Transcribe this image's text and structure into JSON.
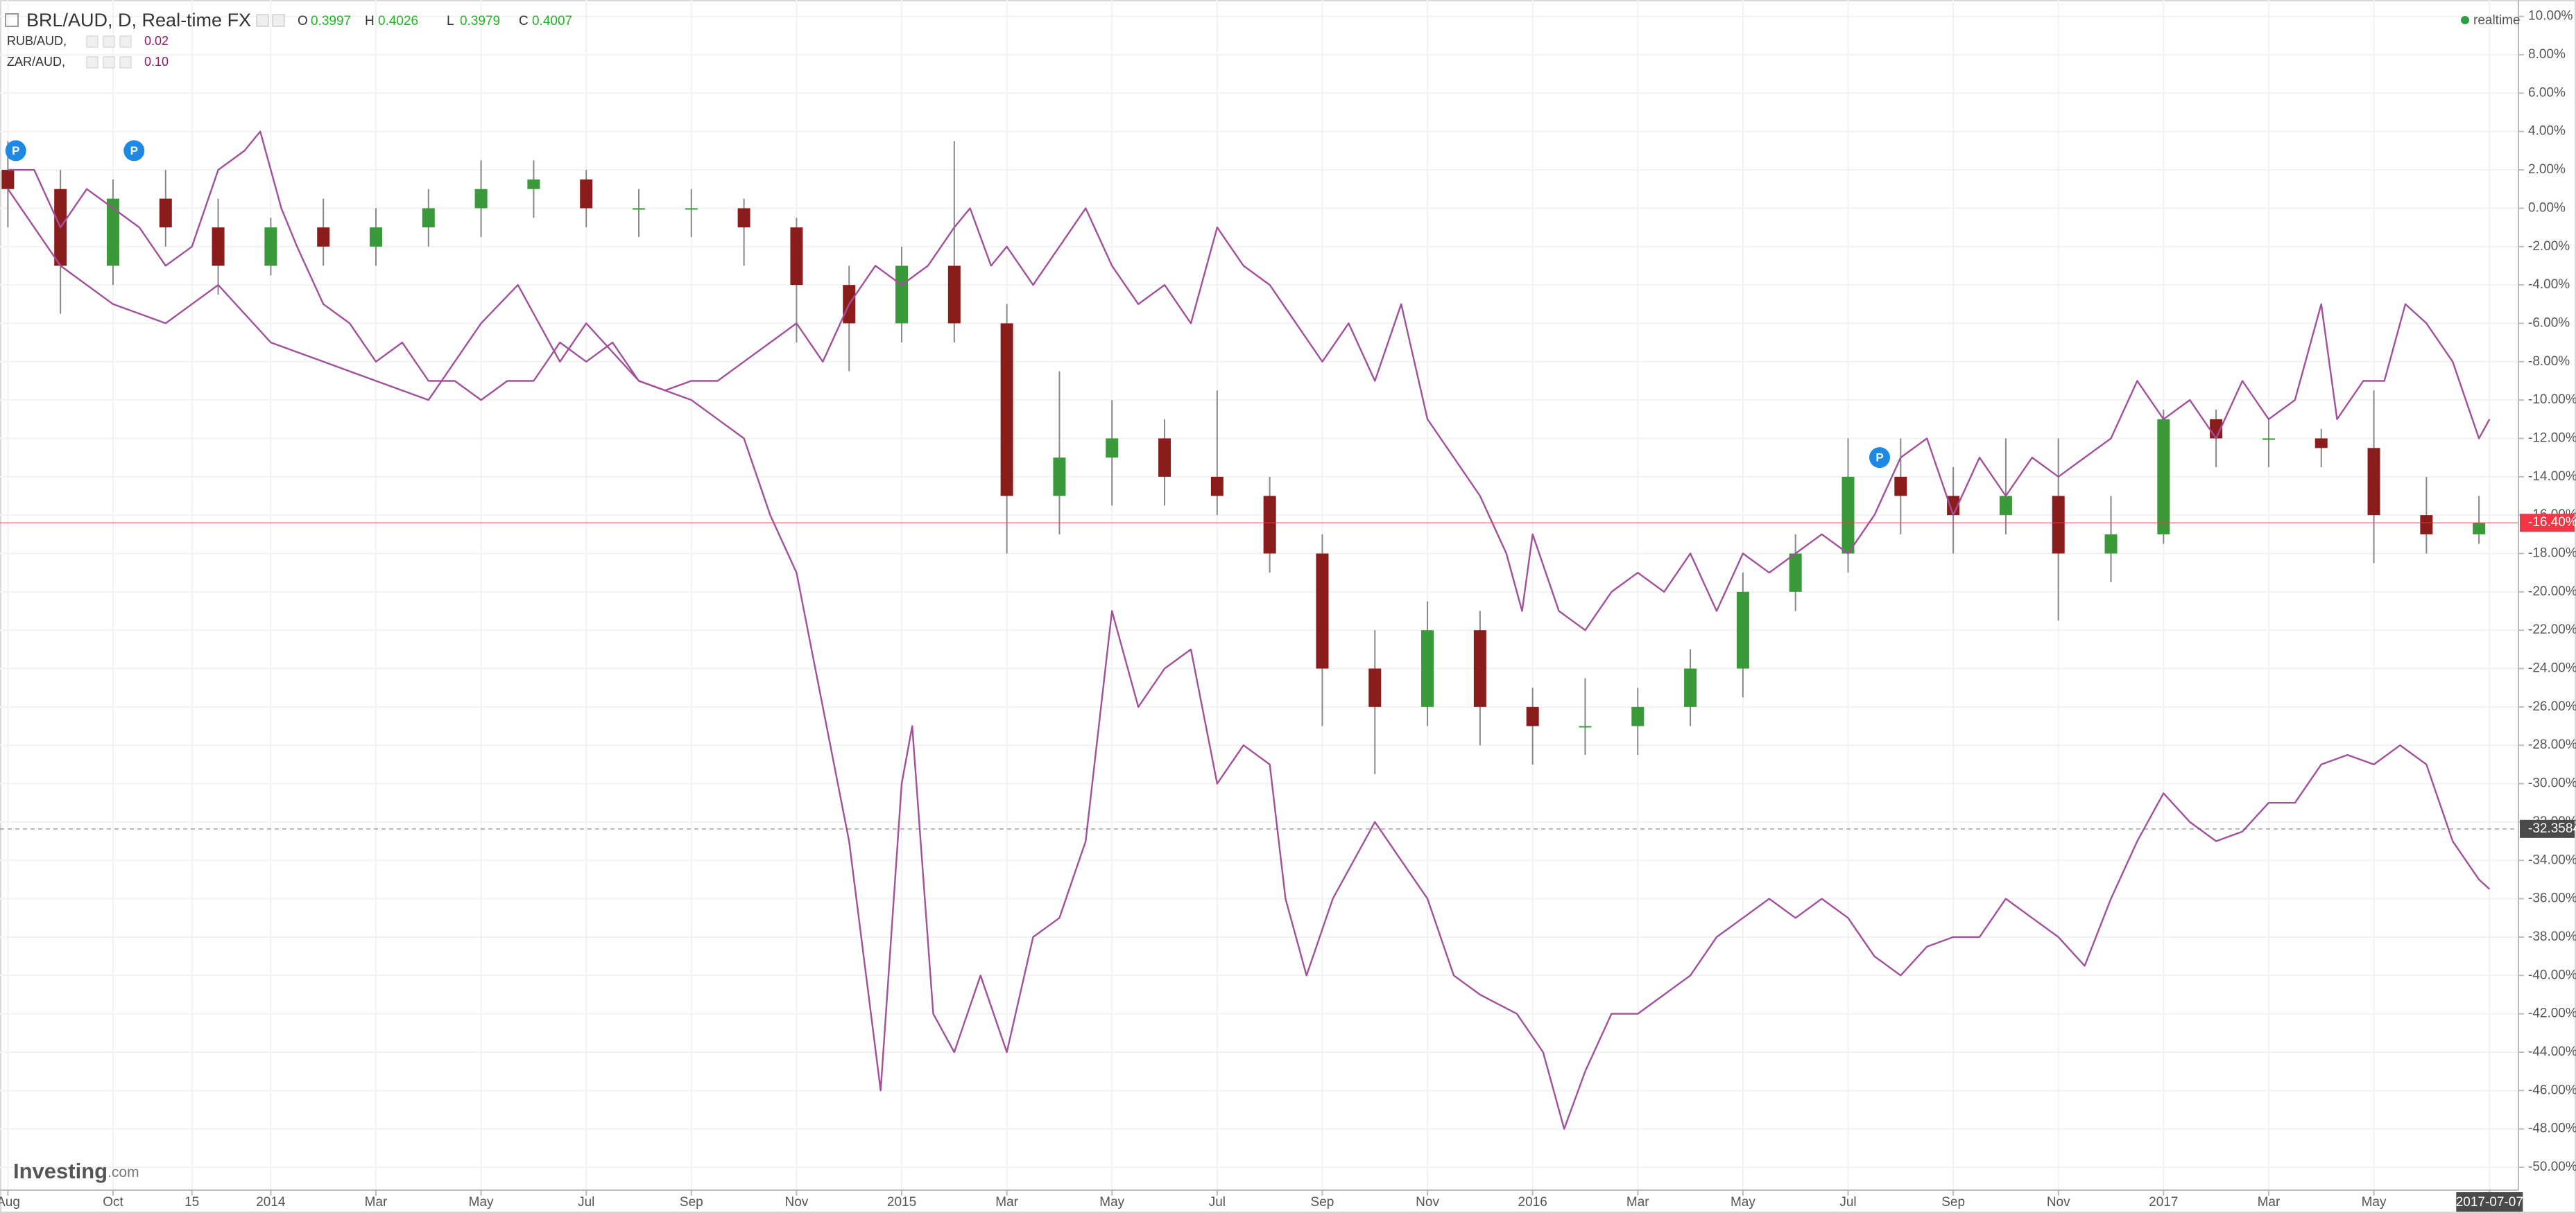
{
  "chart_data": {
    "type": "candlestick",
    "title": "BRL/AUD, D, Real-time FX",
    "ohlc": [
      {
        "label": "O",
        "value": "0.3997"
      },
      {
        "label": "H",
        "value": "0.4026"
      },
      {
        "label": "L",
        "value": "0.3979"
      },
      {
        "label": "C",
        "value": "0.4007"
      }
    ],
    "badge": "realtime",
    "logo": "Investing",
    "logo_suffix": ".com",
    "grid": true,
    "xlim": [
      -0.15,
      47.75
    ],
    "xticks": [
      {
        "value": 0,
        "label": "Aug"
      },
      {
        "value": 2,
        "label": "Oct"
      },
      {
        "value": 3.5,
        "label": "15"
      },
      {
        "value": 5,
        "label": "2014"
      },
      {
        "value": 7,
        "label": "Mar"
      },
      {
        "value": 9,
        "label": "May"
      },
      {
        "value": 11,
        "label": "Jul"
      },
      {
        "value": 13,
        "label": "Sep"
      },
      {
        "value": 15,
        "label": "Nov"
      },
      {
        "value": 17,
        "label": "2015"
      },
      {
        "value": 19,
        "label": "Mar"
      },
      {
        "value": 21,
        "label": "May"
      },
      {
        "value": 23,
        "label": "Jul"
      },
      {
        "value": 25,
        "label": "Sep"
      },
      {
        "value": 27,
        "label": "Nov"
      },
      {
        "value": 29,
        "label": "2016"
      },
      {
        "value": 31,
        "label": "Mar"
      },
      {
        "value": 33,
        "label": "May"
      },
      {
        "value": 35,
        "label": "Jul"
      },
      {
        "value": 37,
        "label": "Sep"
      },
      {
        "value": 39,
        "label": "Nov"
      },
      {
        "value": 41,
        "label": "2017"
      },
      {
        "value": 43,
        "label": "Mar"
      },
      {
        "value": 45,
        "label": "May"
      },
      {
        "value": 47.2,
        "label": "2017-07-07"
      }
    ],
    "ylim": [
      -50,
      10
    ],
    "yticks": [
      {
        "value": 10,
        "label": "10.00%"
      },
      {
        "value": 8,
        "label": "8.00%"
      },
      {
        "value": 6,
        "label": "6.00%"
      },
      {
        "value": 4,
        "label": "4.00%"
      },
      {
        "value": 2,
        "label": "2.00%"
      },
      {
        "value": 0,
        "label": "0.00%"
      },
      {
        "value": -2,
        "label": "-2.00%"
      },
      {
        "value": -4,
        "label": "-4.00%"
      },
      {
        "value": -6,
        "label": "-6.00%"
      },
      {
        "value": -8,
        "label": "-8.00%"
      },
      {
        "value": -10,
        "label": "-10.00%"
      },
      {
        "value": -12,
        "label": "-12.00%"
      },
      {
        "value": -14,
        "label": "-14.00%"
      },
      {
        "value": -16,
        "label": "-16.00%"
      },
      {
        "value": -18,
        "label": "-18.00%"
      },
      {
        "value": -20,
        "label": "-20.00%"
      },
      {
        "value": -22,
        "label": "-22.00%"
      },
      {
        "value": -24,
        "label": "-24.00%"
      },
      {
        "value": -26,
        "label": "-26.00%"
      },
      {
        "value": -28,
        "label": "-28.00%"
      },
      {
        "value": -30,
        "label": "-30.00%"
      },
      {
        "value": -32,
        "label": "-32.00%"
      },
      {
        "value": -34,
        "label": "-34.00%"
      },
      {
        "value": -36,
        "label": "-36.00%"
      },
      {
        "value": -38,
        "label": "-38.00%"
      },
      {
        "value": -40,
        "label": "-40.00%"
      },
      {
        "value": -42,
        "label": "-42.00%"
      },
      {
        "value": -44,
        "label": "-44.00%"
      },
      {
        "value": -46,
        "label": "-46.00%"
      },
      {
        "value": -48,
        "label": "-48.00%"
      },
      {
        "value": -50,
        "label": "-50.00%"
      }
    ],
    "series": [
      {
        "type": "candlestick",
        "up_color": "#3a9a3a",
        "down_color": "#8b1c1c",
        "wick_color": "#888888",
        "x": [
          0,
          1,
          2,
          3,
          4,
          5,
          6,
          7,
          8,
          9,
          10,
          11,
          12,
          13,
          14,
          15,
          16,
          17,
          18,
          19,
          20,
          21,
          22,
          23,
          24,
          25,
          26,
          27,
          28,
          29,
          30,
          31,
          32,
          33,
          34,
          35,
          36,
          37,
          38,
          39,
          40,
          41,
          42,
          43,
          44,
          45,
          46,
          47
        ],
        "open": [
          2,
          1,
          -3,
          0.5,
          -1,
          -3,
          -1,
          -2,
          -1,
          0,
          1,
          1.5,
          0,
          0,
          0,
          -1,
          -4,
          -6,
          -3,
          -6,
          -15,
          -13,
          -12,
          -14,
          -15,
          -18,
          -24,
          -26,
          -22,
          -26,
          -27,
          -27,
          -26,
          -24,
          -20,
          -18,
          -14,
          -15,
          -16,
          -15,
          -18,
          -17,
          -11,
          -12,
          -12,
          -12.5,
          -16,
          -17
        ],
        "high": [
          3.5,
          2,
          1.5,
          2,
          0.5,
          -0.5,
          0.5,
          0,
          1,
          2.5,
          2.5,
          2,
          1,
          1,
          0.5,
          -0.5,
          -3,
          -2,
          3.5,
          -5,
          -8.5,
          -10,
          -11,
          -9.5,
          -14,
          -17,
          -22,
          -20.5,
          -21,
          -25,
          -24.5,
          -25,
          -23,
          -19,
          -17,
          -12,
          -12,
          -13.5,
          -12,
          -12,
          -15,
          -10.5,
          -10.5,
          -11,
          -11.5,
          -9.5,
          -14,
          -15
        ],
        "low": [
          -1,
          -5.5,
          -4,
          -2,
          -4.5,
          -3.5,
          -3,
          -3,
          -2,
          -1.5,
          -0.5,
          -1,
          -1.5,
          -1.5,
          -3,
          -7,
          -8.5,
          -7,
          -7,
          -18,
          -17,
          -15.5,
          -15.5,
          -16,
          -19,
          -27,
          -29.5,
          -27,
          -28,
          -29,
          -28.5,
          -28.5,
          -27,
          -25.5,
          -21,
          -19,
          -17,
          -18,
          -17,
          -21.5,
          -19.5,
          -17.5,
          -13.5,
          -13.5,
          -13.5,
          -18.5,
          -18,
          -17.5
        ],
        "close": [
          1,
          -3,
          0.5,
          -1,
          -3,
          -1,
          -2,
          -1,
          0,
          1,
          1.5,
          0,
          0,
          0,
          -1,
          -4,
          -6,
          -3,
          -6,
          -15,
          -13,
          -12,
          -14,
          -15,
          -18,
          -24,
          -26,
          -22,
          -26,
          -27,
          -27,
          -26,
          -24,
          -20,
          -18,
          -14,
          -15,
          -16,
          -15,
          -18,
          -17,
          -11,
          -12,
          -12,
          -12.5,
          -16,
          -17,
          -16.4
        ]
      },
      {
        "type": "line",
        "name": "RUB/AUD,",
        "value_label": "0.02",
        "color": "#a2509b",
        "x": [
          0,
          1,
          2,
          3,
          4,
          5,
          6,
          7,
          8,
          9,
          9.7,
          10.5,
          11,
          12,
          13,
          13.5,
          14,
          14.5,
          15,
          15.5,
          16,
          16.6,
          17,
          17.2,
          17.6,
          18,
          18.5,
          19,
          19.5,
          20,
          20.5,
          21,
          21.5,
          22,
          22.5,
          23,
          23.5,
          24,
          24.3,
          24.7,
          25.2,
          25.6,
          26,
          26.5,
          27,
          27.5,
          28,
          28.7,
          29.2,
          29.6,
          30,
          30.5,
          31,
          31.5,
          32,
          32.5,
          33,
          33.5,
          34,
          34.5,
          35,
          35.5,
          36,
          36.5,
          37,
          37.5,
          38,
          38.5,
          39,
          39.5,
          40,
          40.5,
          41,
          41.5,
          42,
          42.5,
          43,
          43.5,
          44,
          44.5,
          45,
          45.5,
          46,
          46.5,
          47,
          47.2
        ],
        "values": [
          1,
          -3,
          -5,
          -6,
          -4,
          -7,
          -8,
          -9,
          -10,
          -6,
          -4,
          -8,
          -6,
          -9,
          -10,
          -11,
          -12,
          -16,
          -19,
          -26,
          -33,
          -46,
          -30,
          -27,
          -42,
          -44,
          -40,
          -44,
          -38,
          -37,
          -33,
          -21,
          -26,
          -24,
          -23,
          -30,
          -28,
          -29,
          -36,
          -40,
          -36,
          -34,
          -32,
          -34,
          -36,
          -40,
          -41,
          -42,
          -44,
          -48,
          -45,
          -42,
          -42,
          -41,
          -40,
          -38,
          -37,
          -36,
          -37,
          -36,
          -37,
          -39,
          -40,
          -38.5,
          -38,
          -38,
          -36,
          -37,
          -38,
          -39.5,
          -36,
          -33,
          -30.5,
          -32,
          -33,
          -32.5,
          -31,
          -31,
          -29,
          -28.5,
          -29,
          -28,
          -29,
          -33,
          -35,
          -35.5
        ]
      },
      {
        "type": "line",
        "name": "ZAR/AUD,",
        "value_label": "0.10",
        "color": "#a2509b",
        "x": [
          0,
          0.5,
          1,
          1.5,
          2,
          2.5,
          3,
          3.5,
          4,
          4.5,
          4.8,
          5.2,
          5.5,
          6,
          6.5,
          7,
          7.5,
          8,
          8.5,
          9,
          9.5,
          10,
          10.5,
          11,
          11.5,
          12,
          12.5,
          13,
          13.5,
          14,
          14.5,
          15,
          15.5,
          16,
          16.5,
          17,
          17.5,
          18,
          18.3,
          18.7,
          19,
          19.5,
          20,
          20.5,
          21,
          21.5,
          22,
          22.5,
          23,
          23.5,
          24,
          24.5,
          25,
          25.5,
          26,
          26.5,
          27,
          27.5,
          28,
          28.5,
          28.8,
          29,
          29.5,
          30,
          30.5,
          31,
          31.5,
          32,
          32.5,
          33,
          33.5,
          34,
          34.5,
          35,
          35.5,
          36,
          36.5,
          37,
          37.5,
          38,
          38.5,
          39,
          39.5,
          40,
          40.5,
          41,
          41.5,
          42,
          42.5,
          43,
          43.5,
          44,
          44.3,
          44.8,
          45.2,
          45.6,
          46,
          46.5,
          47,
          47.2
        ],
        "values": [
          2,
          2,
          -1,
          1,
          0,
          -1,
          -3,
          -2,
          2,
          3,
          4,
          0,
          -2,
          -5,
          -6,
          -8,
          -7,
          -9,
          -9,
          -10,
          -9,
          -9,
          -7,
          -8,
          -7,
          -9,
          -9.5,
          -9,
          -9,
          -8,
          -7,
          -6,
          -8,
          -5,
          -3,
          -4,
          -3,
          -1,
          0,
          -3,
          -2,
          -4,
          -2,
          0,
          -3,
          -5,
          -4,
          -6,
          -1,
          -3,
          -4,
          -6,
          -8,
          -6,
          -9,
          -5,
          -11,
          -13,
          -15,
          -18,
          -21,
          -17,
          -21,
          -22,
          -20,
          -19,
          -20,
          -18,
          -21,
          -18,
          -19,
          -18,
          -17,
          -18,
          -16,
          -13,
          -12,
          -16,
          -13,
          -15,
          -13,
          -14,
          -13,
          -12,
          -9,
          -11,
          -10,
          -12,
          -9,
          -11,
          -10,
          -5,
          -11,
          -9,
          -9,
          -5,
          -6,
          -8,
          -12,
          -11
        ]
      }
    ],
    "markers": [
      {
        "value": -16.4,
        "label": "-16.40%",
        "color": "#f23645"
      },
      {
        "value": -32.3584,
        "label": "-32.3584",
        "color": "#4a4a4a"
      }
    ],
    "annotations": [
      {
        "x": 0.15,
        "y": 3,
        "text": "P"
      },
      {
        "x": 2.4,
        "y": 3,
        "text": "P"
      },
      {
        "x": 35.6,
        "y": -13,
        "text": "P"
      }
    ]
  }
}
